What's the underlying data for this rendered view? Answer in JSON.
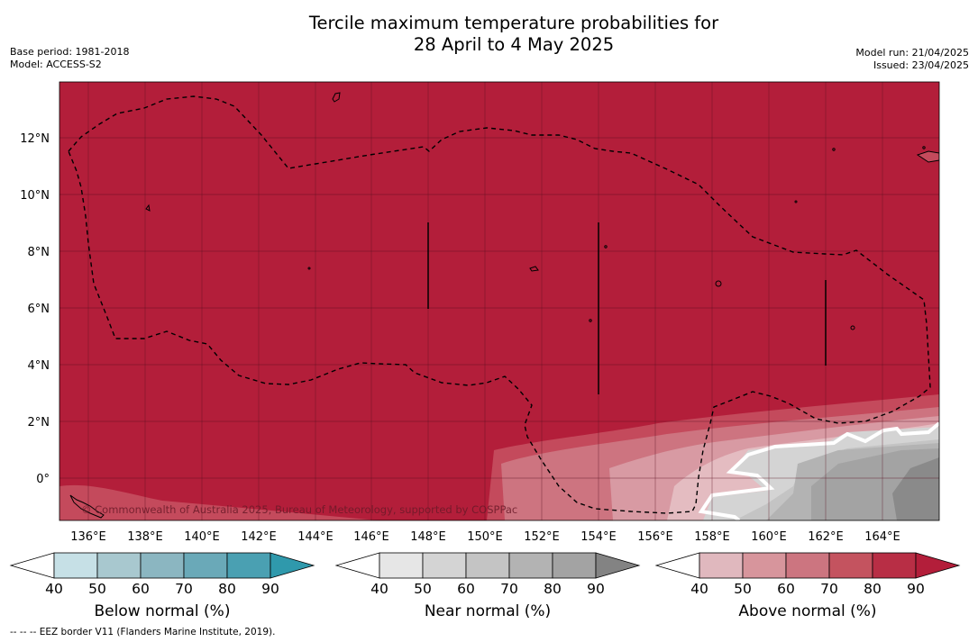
{
  "title": {
    "line1": "Tercile maximum temperature probabilities for",
    "line2": "28 April to 4 May 2025"
  },
  "meta_left": {
    "base_period": "Base period: 1981-2018",
    "model": "Model: ACCESS-S2"
  },
  "meta_right": {
    "model_run": "Model run: 21/04/2025",
    "issued": "Issued: 23/04/2025"
  },
  "map": {
    "lon_ticks": [
      "136°E",
      "138°E",
      "140°E",
      "142°E",
      "144°E",
      "146°E",
      "148°E",
      "150°E",
      "152°E",
      "154°E",
      "156°E",
      "158°E",
      "160°E",
      "162°E",
      "164°E"
    ],
    "lat_ticks": [
      "12°N",
      "10°N",
      "8°N",
      "6°N",
      "4°N",
      "2°N",
      "0°"
    ],
    "copyright": "© Commonwealth of Australia 2025, Bureau of Meteorology, supported by COSPPac",
    "colors": {
      "above_90": "#b31e3a",
      "above_80": "#c44a5c",
      "above_70": "#cd7480",
      "above_60": "#d89aa3",
      "above_50": "#e4bcc1",
      "near_40": "#e6e6e6",
      "near_50": "#d4d4d4",
      "near_60": "#c4c4c4",
      "near_70": "#b3b3b3",
      "near_80": "#a3a3a3",
      "near_90": "#8a8a8a"
    }
  },
  "colorbars": [
    {
      "title": "Below normal (%)",
      "labels": [
        "40",
        "50",
        "60",
        "70",
        "80",
        "90"
      ],
      "colors": [
        "#ffffff",
        "#c6e0e6",
        "#a8c8cf",
        "#8bb6c1",
        "#6aa9b8",
        "#4aa0b2",
        "#2f99ac"
      ]
    },
    {
      "title": "Near normal (%)",
      "labels": [
        "40",
        "50",
        "60",
        "70",
        "80",
        "90"
      ],
      "colors": [
        "#ffffff",
        "#e6e6e6",
        "#d4d4d4",
        "#c4c4c4",
        "#b3b3b3",
        "#a3a3a3",
        "#838383"
      ]
    },
    {
      "title": "Above normal (%)",
      "labels": [
        "40",
        "50",
        "60",
        "70",
        "80",
        "90"
      ],
      "colors": [
        "#ffffff",
        "#e0b8be",
        "#d7959c",
        "#cc7580",
        "#c4535f",
        "#b82e45",
        "#b31e3a"
      ]
    }
  ],
  "footnote": "--  --  -- EEZ border V11 (Flanders Marine Institute, 2019)."
}
